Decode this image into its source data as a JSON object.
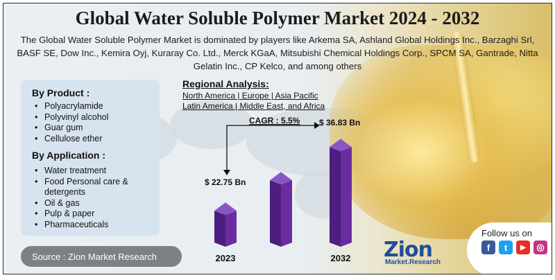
{
  "title": "Global Water Soluble Polymer Market 2024 - 2032",
  "subtitle": "The Global Water Soluble Polymer Market is dominated by players like Arkema SA, Ashland Global Holdings Inc., Barzaghi Srl, BASF SE, Dow Inc., Kemira Oyj, Kuraray Co. Ltd., Merck KGaA, Mitsubishi Chemical Holdings Corp., SPCM SA, Gantrade, Nitta Gelatin Inc., CP Kelco, and among others",
  "by_product": {
    "title": "By Product :",
    "items": [
      "Polyacrylamide",
      "Polyvinyl alcohol",
      "Guar gum",
      "Cellulose ether"
    ]
  },
  "by_application": {
    "title": "By Application :",
    "items": [
      "Water treatment",
      "Food Personal care & detergents",
      "Oil & gas",
      "Pulp & paper",
      "Pharmaceuticals"
    ]
  },
  "source": "Source : Zion Market Research",
  "regional": {
    "title": "Regional Analysis:",
    "line1": "North America | Europe | Asia Pacific",
    "line2": "Latin America | Middle East, and Africa"
  },
  "chart_data": {
    "type": "bar",
    "categories": [
      "2023",
      "",
      "2032"
    ],
    "values": [
      22.75,
      null,
      36.83
    ],
    "value_labels": [
      "$ 22.75 Bn",
      "",
      "$ 36.83 Bn"
    ],
    "cagr_label": "CAGR : 5.5%",
    "bar_color": "#6a2ca0"
  },
  "follow": {
    "label": "Follow us on",
    "icons": [
      {
        "name": "facebook-icon",
        "glyph": "f",
        "color": "#3b5998"
      },
      {
        "name": "twitter-icon",
        "glyph": "t",
        "color": "#1da1f2"
      },
      {
        "name": "youtube-icon",
        "glyph": "▶",
        "color": "#e52d27"
      },
      {
        "name": "instagram-icon",
        "glyph": "◎",
        "color": "#c13584"
      }
    ]
  },
  "logo": {
    "main": "Zion",
    "sub": "Market.Research"
  }
}
